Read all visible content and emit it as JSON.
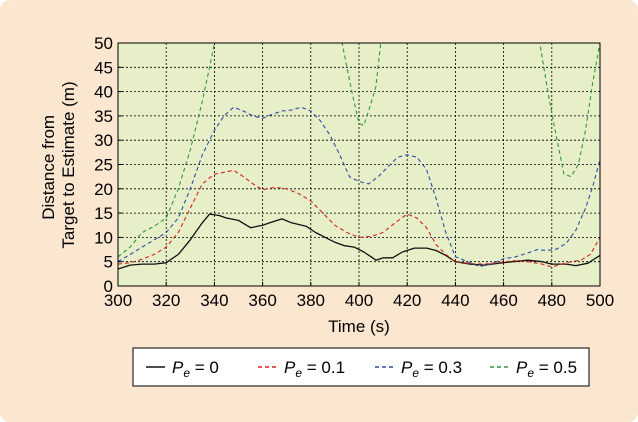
{
  "colors": {
    "panel_bg": "#fbe6cf",
    "plot_bg": "#e6efc8",
    "series": [
      "#111111",
      "#d62020",
      "#2b4fa8",
      "#2f9a3a"
    ]
  },
  "chart_data": {
    "type": "line",
    "title": "",
    "xlabel": "Time (s)",
    "ylabel": [
      "Distance from",
      "Target to Estimate (m)"
    ],
    "xlim": [
      300,
      500
    ],
    "ylim": [
      0,
      50
    ],
    "xticks": [
      300,
      320,
      340,
      360,
      380,
      400,
      420,
      440,
      460,
      480,
      500
    ],
    "yticks": [
      0,
      5,
      10,
      15,
      20,
      25,
      30,
      35,
      40,
      45,
      50
    ],
    "grid": true,
    "legend_position": "bottom",
    "series": [
      {
        "name": "P_e = 0",
        "legend_base": "P",
        "legend_sub": "e",
        "legend_rest": " = 0",
        "style": "solid",
        "points": [
          [
            300,
            3.5
          ],
          [
            305,
            4.3
          ],
          [
            310,
            4.5
          ],
          [
            315,
            4.5
          ],
          [
            320,
            4.8
          ],
          [
            325,
            6.5
          ],
          [
            330,
            9.5
          ],
          [
            335,
            13
          ],
          [
            338,
            14.8
          ],
          [
            342,
            14.5
          ],
          [
            345,
            14
          ],
          [
            350,
            13.5
          ],
          [
            355,
            12
          ],
          [
            360,
            12.5
          ],
          [
            363,
            13
          ],
          [
            368,
            13.8
          ],
          [
            372,
            13
          ],
          [
            378,
            12.3
          ],
          [
            382,
            11
          ],
          [
            386,
            10
          ],
          [
            390,
            9
          ],
          [
            394,
            8.3
          ],
          [
            398,
            8
          ],
          [
            402,
            7
          ],
          [
            405,
            6
          ],
          [
            407,
            5.3
          ],
          [
            410,
            5.8
          ],
          [
            414,
            5.8
          ],
          [
            418,
            7
          ],
          [
            423,
            7.8
          ],
          [
            428,
            7.8
          ],
          [
            432,
            7.3
          ],
          [
            436,
            6.3
          ],
          [
            440,
            5
          ],
          [
            446,
            4.5
          ],
          [
            452,
            4.3
          ],
          [
            458,
            4.7
          ],
          [
            464,
            5
          ],
          [
            470,
            5.3
          ],
          [
            476,
            5
          ],
          [
            480,
            4.5
          ],
          [
            486,
            4.5
          ],
          [
            490,
            4.2
          ],
          [
            495,
            4.7
          ],
          [
            500,
            6.3
          ]
        ]
      },
      {
        "name": "P_e = 0.1",
        "legend_base": "P",
        "legend_sub": "e",
        "legend_rest": " = 0.1",
        "style": "dashed",
        "points": [
          [
            300,
            4.5
          ],
          [
            305,
            4.8
          ],
          [
            310,
            5.5
          ],
          [
            315,
            6.5
          ],
          [
            320,
            8
          ],
          [
            325,
            11
          ],
          [
            330,
            16
          ],
          [
            335,
            21
          ],
          [
            340,
            23
          ],
          [
            345,
            23.5
          ],
          [
            348,
            23.8
          ],
          [
            352,
            22.5
          ],
          [
            356,
            21
          ],
          [
            360,
            19.8
          ],
          [
            365,
            20.3
          ],
          [
            370,
            20
          ],
          [
            375,
            19
          ],
          [
            380,
            17.5
          ],
          [
            385,
            15
          ],
          [
            390,
            12.5
          ],
          [
            395,
            11
          ],
          [
            400,
            10
          ],
          [
            405,
            10.2
          ],
          [
            410,
            11
          ],
          [
            415,
            13
          ],
          [
            420,
            14.8
          ],
          [
            424,
            14
          ],
          [
            428,
            12
          ],
          [
            432,
            8.5
          ],
          [
            436,
            6.5
          ],
          [
            440,
            5
          ],
          [
            446,
            4.6
          ],
          [
            452,
            4.5
          ],
          [
            458,
            4.8
          ],
          [
            464,
            5.2
          ],
          [
            470,
            5
          ],
          [
            476,
            4.5
          ],
          [
            480,
            3.9
          ],
          [
            484,
            4.5
          ],
          [
            488,
            5
          ],
          [
            492,
            5.3
          ],
          [
            496,
            6.5
          ],
          [
            500,
            10
          ]
        ]
      },
      {
        "name": "P_e = 0.3",
        "legend_base": "P",
        "legend_sub": "e",
        "legend_rest": " = 0.3",
        "style": "dashed",
        "points": [
          [
            300,
            5
          ],
          [
            305,
            6.5
          ],
          [
            310,
            8
          ],
          [
            315,
            9.5
          ],
          [
            320,
            11
          ],
          [
            325,
            14
          ],
          [
            330,
            20
          ],
          [
            335,
            27
          ],
          [
            340,
            32
          ],
          [
            344,
            35
          ],
          [
            348,
            36.8
          ],
          [
            352,
            36
          ],
          [
            356,
            35
          ],
          [
            360,
            34.5
          ],
          [
            364,
            35.3
          ],
          [
            368,
            36
          ],
          [
            372,
            36.2
          ],
          [
            376,
            36.8
          ],
          [
            380,
            36
          ],
          [
            384,
            34
          ],
          [
            388,
            31
          ],
          [
            392,
            27
          ],
          [
            396,
            22.5
          ],
          [
            400,
            21.5
          ],
          [
            404,
            21
          ],
          [
            408,
            22.5
          ],
          [
            412,
            24.5
          ],
          [
            416,
            26.5
          ],
          [
            420,
            27
          ],
          [
            424,
            26.5
          ],
          [
            428,
            24
          ],
          [
            432,
            18
          ],
          [
            436,
            11
          ],
          [
            440,
            6
          ],
          [
            446,
            4.8
          ],
          [
            450,
            4
          ],
          [
            455,
            4.6
          ],
          [
            460,
            5.6
          ],
          [
            465,
            6
          ],
          [
            470,
            6.8
          ],
          [
            474,
            7.5
          ],
          [
            478,
            7.3
          ],
          [
            482,
            7.6
          ],
          [
            486,
            8.8
          ],
          [
            490,
            11.5
          ],
          [
            494,
            16
          ],
          [
            497,
            20.5
          ],
          [
            500,
            26
          ]
        ]
      },
      {
        "name": "P_e = 0.5",
        "legend_base": "P",
        "legend_sub": "e",
        "legend_rest": " = 0.5",
        "style": "dashed",
        "points": [
          [
            300,
            6
          ],
          [
            305,
            8
          ],
          [
            310,
            11
          ],
          [
            315,
            12.3
          ],
          [
            320,
            14
          ],
          [
            325,
            20
          ],
          [
            330,
            28
          ],
          [
            335,
            38
          ],
          [
            338,
            45
          ],
          [
            340,
            50
          ],
          [
            393,
            50
          ],
          [
            397,
            40
          ],
          [
            400,
            33.5
          ],
          [
            402,
            33
          ],
          [
            404,
            36
          ],
          [
            407,
            41
          ],
          [
            409,
            50
          ],
          [
            475,
            50
          ],
          [
            478,
            41
          ],
          [
            481,
            33
          ],
          [
            485,
            23
          ],
          [
            488,
            22.5
          ],
          [
            491,
            25
          ],
          [
            494,
            32
          ],
          [
            497,
            42
          ],
          [
            500,
            50
          ]
        ]
      }
    ]
  }
}
